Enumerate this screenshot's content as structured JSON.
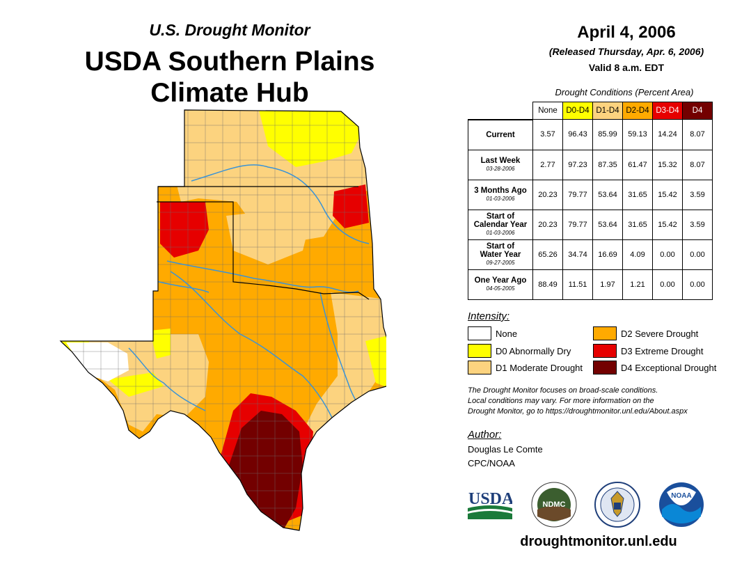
{
  "header": {
    "subtitle": "U.S. Drought Monitor",
    "title_line1": "USDA Southern Plains",
    "title_line2": "Climate Hub"
  },
  "info": {
    "date": "April 4, 2006",
    "released": "(Released Thursday, Apr. 6, 2006)",
    "valid": "Valid 8 a.m. EDT"
  },
  "table": {
    "caption": "Drought Conditions (Percent Area)",
    "columns": [
      "None",
      "D0-D4",
      "D1-D4",
      "D2-D4",
      "D3-D4",
      "D4"
    ],
    "rows": [
      {
        "label": "Current",
        "date": "",
        "values": [
          "3.57",
          "96.43",
          "85.99",
          "59.13",
          "14.24",
          "8.07"
        ]
      },
      {
        "label": "Last Week",
        "date": "03-28-2006",
        "values": [
          "2.77",
          "97.23",
          "87.35",
          "61.47",
          "15.32",
          "8.07"
        ]
      },
      {
        "label": "3 Months Ago",
        "date": "01-03-2006",
        "values": [
          "20.23",
          "79.77",
          "53.64",
          "31.65",
          "15.42",
          "3.59"
        ]
      },
      {
        "label_line1": "Start of",
        "label_line2": "Calendar Year",
        "date": "01-03-2006",
        "values": [
          "20.23",
          "79.77",
          "53.64",
          "31.65",
          "15.42",
          "3.59"
        ]
      },
      {
        "label_line1": "Start of",
        "label_line2": "Water Year",
        "date": "09-27-2005",
        "values": [
          "65.26",
          "34.74",
          "16.69",
          "4.09",
          "0.00",
          "0.00"
        ]
      },
      {
        "label": "One Year Ago",
        "date": "04-05-2005",
        "values": [
          "88.49",
          "11.51",
          "1.97",
          "1.21",
          "0.00",
          "0.00"
        ]
      }
    ]
  },
  "legend": {
    "title": "Intensity:",
    "items": [
      {
        "label": "None",
        "color": "#ffffff"
      },
      {
        "label": "D0 Abnormally Dry",
        "color": "#ffff00"
      },
      {
        "label": "D1 Moderate Drought",
        "color": "#fcd37f"
      },
      {
        "label": "D2 Severe Drought",
        "color": "#ffaa00"
      },
      {
        "label": "D3 Extreme Drought",
        "color": "#e60000"
      },
      {
        "label": "D4 Exceptional Drought",
        "color": "#730000"
      }
    ]
  },
  "note": {
    "line1": "The Drought Monitor focuses on broad-scale conditions.",
    "line2": "Local conditions may vary. For more information on the",
    "line3": "Drought Monitor, go to https://droughtmonitor.unl.edu/About.aspx"
  },
  "author": {
    "label": "Author:",
    "name": "Douglas Le Comte",
    "org": "CPC/NOAA"
  },
  "logos": {
    "usda": "USDA",
    "ndmc": "NDMC",
    "noaa": "NOAA"
  },
  "footer": {
    "url": "droughtmonitor.unl.edu"
  },
  "icons": [
    "usda-logo",
    "ndmc-logo",
    "doc-seal-logo",
    "noaa-logo"
  ]
}
